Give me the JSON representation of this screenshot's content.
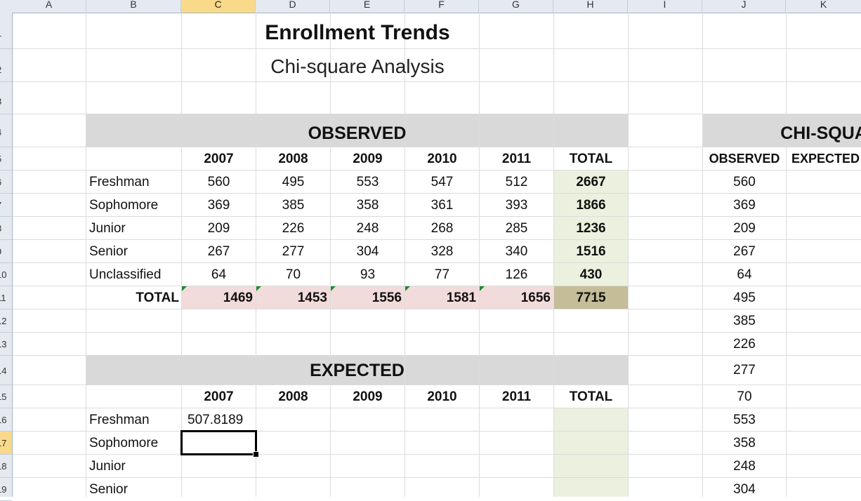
{
  "column_headers": [
    "A",
    "B",
    "C",
    "D",
    "E",
    "F",
    "G",
    "H",
    "I",
    "J",
    "K"
  ],
  "row_headers": [
    "1",
    "2",
    "3",
    "4",
    "5",
    "6",
    "7",
    "8",
    "9",
    "10",
    "11",
    "12",
    "13",
    "14",
    "15",
    "16",
    "17",
    "18",
    "19"
  ],
  "selected_column": "C",
  "selected_row": "17",
  "title": "Enrollment Trends",
  "subtitle": "Chi-square Analysis",
  "observed": {
    "heading": "OBSERVED",
    "years": [
      "2007",
      "2008",
      "2009",
      "2010",
      "2011"
    ],
    "total_label": "TOTAL",
    "rows": [
      {
        "label": "Freshman",
        "values": [
          "560",
          "495",
          "553",
          "547",
          "512"
        ],
        "total": "2667"
      },
      {
        "label": "Sophomore",
        "values": [
          "369",
          "385",
          "358",
          "361",
          "393"
        ],
        "total": "1866"
      },
      {
        "label": "Junior",
        "values": [
          "209",
          "226",
          "248",
          "268",
          "285"
        ],
        "total": "1236"
      },
      {
        "label": "Senior",
        "values": [
          "267",
          "277",
          "304",
          "328",
          "340"
        ],
        "total": "1516"
      },
      {
        "label": "Unclassified",
        "values": [
          "64",
          "70",
          "93",
          "77",
          "126"
        ],
        "total": "430"
      }
    ],
    "totals_row": {
      "label": "TOTAL",
      "values": [
        "1469",
        "1453",
        "1556",
        "1581",
        "1656"
      ],
      "grand_total": "7715"
    }
  },
  "expected": {
    "heading": "EXPECTED",
    "years": [
      "2007",
      "2008",
      "2009",
      "2010",
      "2011"
    ],
    "total_label": "TOTAL",
    "rows": [
      {
        "label": "Freshman",
        "c2007": "507.8189"
      },
      {
        "label": "Sophomore",
        "c2007": ""
      },
      {
        "label": "Junior",
        "c2007": ""
      },
      {
        "label": "Senior",
        "c2007": ""
      }
    ]
  },
  "chi_square": {
    "heading": "CHI-SQUA",
    "col_observed": "OBSERVED",
    "col_expected": "EXPECTED",
    "observed_values": [
      "560",
      "369",
      "209",
      "267",
      "64",
      "495",
      "385",
      "226",
      "277",
      "70",
      "553",
      "358",
      "248",
      "304"
    ]
  },
  "colors": {
    "band_gray": "#d9d9d9",
    "total_green": "#ebf1de",
    "total_pink": "#f2dcdb",
    "grand_total_olive": "#c4bd97",
    "error_triangle": "#1e8a2e"
  }
}
